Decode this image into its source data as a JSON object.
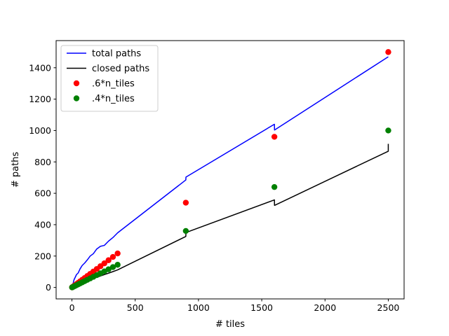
{
  "chart_data": {
    "type": "line",
    "xlabel": "# tiles",
    "ylabel": "# paths",
    "xlim": [
      -125,
      2625
    ],
    "ylim": [
      -73,
      1573
    ],
    "xticks": [
      0,
      500,
      1000,
      1500,
      2000,
      2500
    ],
    "yticks": [
      0,
      200,
      400,
      600,
      800,
      1000,
      1200,
      1400
    ],
    "grid": false,
    "legend_position": "top-left",
    "series": [
      {
        "name": "total paths",
        "kind": "line",
        "color": "#0000ff",
        "x": [
          1,
          4,
          9,
          16,
          25,
          36,
          49,
          64,
          81,
          100,
          121,
          144,
          169,
          196,
          225,
          256,
          289,
          324,
          361,
          900,
          901,
          1600,
          1601,
          2500
        ],
        "y": [
          1,
          10,
          25,
          48,
          63,
          82,
          92,
          118,
          140,
          155,
          175,
          200,
          215,
          245,
          262,
          268,
          295,
          318,
          348,
          685,
          703,
          1040,
          1003,
          1470
        ]
      },
      {
        "name": "closed paths",
        "kind": "line",
        "color": "#000000",
        "x": [
          1,
          4,
          9,
          16,
          25,
          36,
          49,
          64,
          81,
          100,
          121,
          144,
          169,
          196,
          225,
          256,
          289,
          324,
          361,
          900,
          901,
          1600,
          1601,
          2500,
          2500
        ],
        "y": [
          0,
          1,
          3,
          5,
          8,
          12,
          17,
          22,
          28,
          35,
          42,
          49,
          57,
          65,
          73,
          82,
          91,
          101,
          112,
          325,
          350,
          558,
          523,
          868,
          915
        ]
      },
      {
        "name": ".6*n_tiles",
        "kind": "scatter",
        "color": "#ff0000",
        "x": [
          1,
          4,
          9,
          16,
          25,
          36,
          49,
          64,
          81,
          100,
          121,
          144,
          169,
          196,
          225,
          256,
          289,
          324,
          361,
          900,
          1600,
          2500
        ],
        "y": [
          0.6,
          2.4,
          5.4,
          9.6,
          15,
          21.6,
          29.4,
          38.4,
          48.6,
          60,
          72.6,
          86.4,
          101.4,
          117.6,
          135,
          153.6,
          173.4,
          194.4,
          216.6,
          540,
          960,
          1500
        ]
      },
      {
        "name": ".4*n_tiles",
        "kind": "scatter",
        "color": "#008000",
        "x": [
          1,
          4,
          9,
          16,
          25,
          36,
          49,
          64,
          81,
          100,
          121,
          144,
          169,
          196,
          225,
          256,
          289,
          324,
          361,
          900,
          1600,
          2500
        ],
        "y": [
          0.4,
          1.6,
          3.6,
          6.4,
          10,
          14.4,
          19.6,
          25.6,
          32.4,
          40,
          48.4,
          57.6,
          67.6,
          78.4,
          90,
          102.4,
          115.6,
          129.6,
          144.4,
          360,
          640,
          1000
        ]
      }
    ]
  }
}
